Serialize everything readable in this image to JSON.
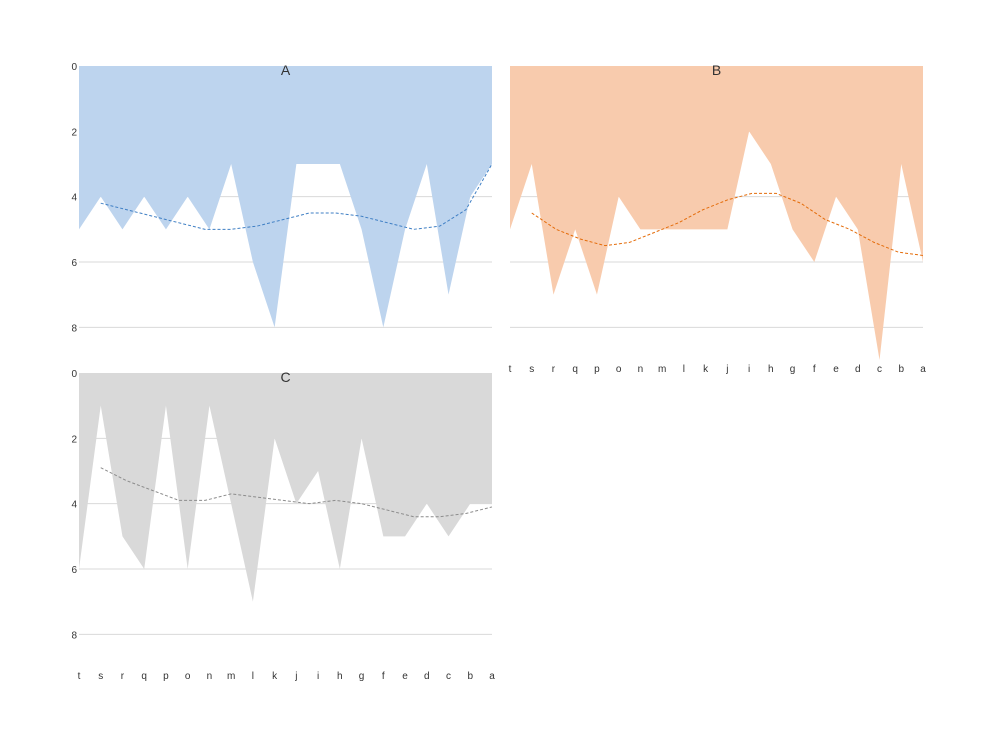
{
  "chart_data": [
    {
      "type": "area",
      "title": "A",
      "x": [
        "t",
        "s",
        "r",
        "q",
        "p",
        "o",
        "n",
        "m",
        "l",
        "k",
        "j",
        "i",
        "h",
        "g",
        "f",
        "e",
        "d",
        "c",
        "b",
        "a"
      ],
      "y_axis": {
        "ylim": [
          0,
          9
        ],
        "ticks": [
          0,
          2,
          4,
          6,
          8
        ],
        "inverted": true
      },
      "grid": true,
      "show_x_tick_labels": false,
      "series": [
        {
          "values": [
            5,
            4,
            5,
            4,
            5,
            4,
            5,
            3,
            6,
            8,
            3,
            3,
            3,
            5,
            8,
            5,
            3,
            7,
            4,
            3
          ],
          "color": "#bdd4ee"
        }
      ],
      "trendline": {
        "values": [
          4.2,
          4.4,
          4.6,
          4.8,
          5.0,
          5.0,
          4.9,
          4.7,
          4.5,
          4.5,
          4.6,
          4.8,
          5.0,
          4.9,
          4.4,
          3.0
        ],
        "color": "#3f7fc4",
        "start_index": 1
      }
    },
    {
      "type": "area",
      "title": "B",
      "x": [
        "t",
        "s",
        "r",
        "q",
        "p",
        "o",
        "n",
        "m",
        "l",
        "k",
        "j",
        "i",
        "h",
        "g",
        "f",
        "e",
        "d",
        "c",
        "b",
        "a"
      ],
      "y_axis": {
        "ylim": [
          0,
          9
        ],
        "ticks": [
          0,
          2,
          4,
          6,
          8
        ],
        "inverted": true,
        "show_tick_labels": false
      },
      "grid": true,
      "show_x_tick_labels": true,
      "series": [
        {
          "values": [
            5,
            3,
            7,
            5,
            7,
            4,
            5,
            5,
            5,
            5,
            5,
            2,
            3,
            5,
            6,
            4,
            5,
            9,
            3,
            6
          ],
          "color": "#f8cbad"
        }
      ],
      "trendline": {
        "values": [
          4.5,
          5.0,
          5.3,
          5.5,
          5.4,
          5.1,
          4.8,
          4.4,
          4.1,
          3.9,
          3.9,
          4.2,
          4.7,
          5.0,
          5.4,
          5.7,
          5.8
        ],
        "color": "#e46c0a",
        "start_index": 1
      }
    },
    {
      "type": "area",
      "title": "C",
      "x": [
        "t",
        "s",
        "r",
        "q",
        "p",
        "o",
        "n",
        "m",
        "l",
        "k",
        "j",
        "i",
        "h",
        "g",
        "f",
        "e",
        "d",
        "c",
        "b",
        "a"
      ],
      "y_axis": {
        "ylim": [
          0,
          9
        ],
        "ticks": [
          0,
          2,
          4,
          6,
          8
        ],
        "inverted": true
      },
      "grid": true,
      "show_x_tick_labels": true,
      "series": [
        {
          "values": [
            6,
            1,
            5,
            6,
            1,
            6,
            1,
            4,
            7,
            2,
            4,
            3,
            6,
            2,
            5,
            5,
            4,
            5,
            4,
            4
          ],
          "color": "#d9d9d9"
        }
      ],
      "trendline": {
        "values": [
          2.9,
          3.3,
          3.6,
          3.9,
          3.9,
          3.7,
          3.8,
          3.9,
          4.0,
          3.9,
          4.0,
          4.2,
          4.4,
          4.4,
          4.3,
          4.1
        ],
        "color": "#8c8c8c",
        "start_index": 1
      }
    }
  ]
}
